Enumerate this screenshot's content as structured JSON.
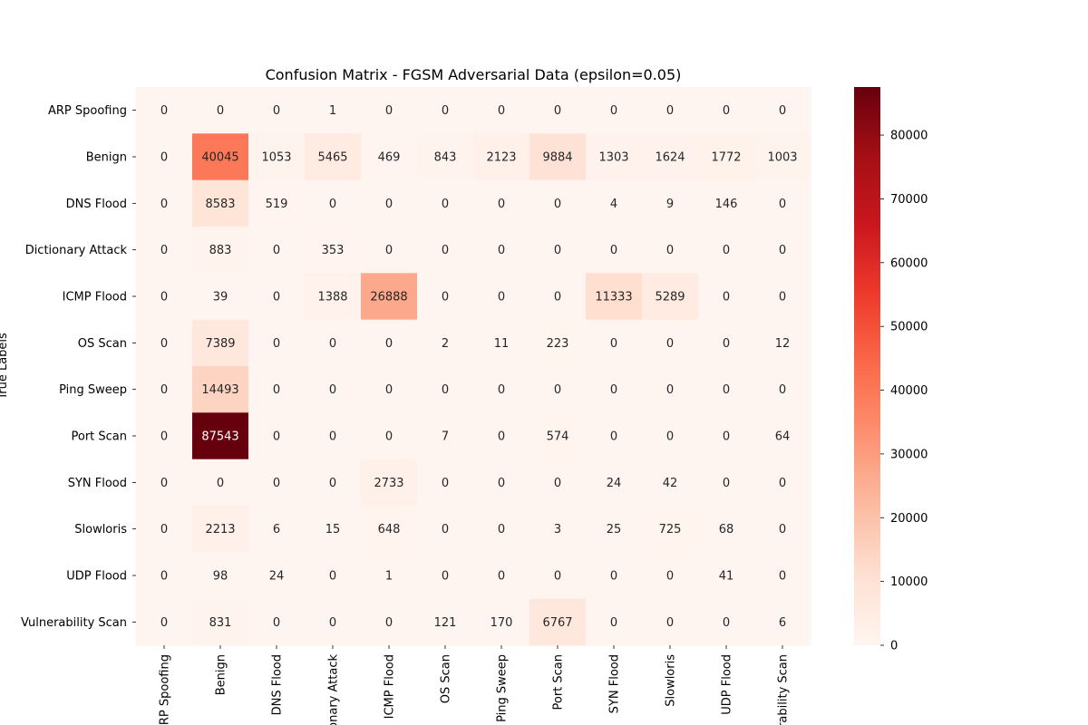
{
  "chart_data": {
    "type": "heatmap",
    "title": "Confusion Matrix - FGSM Adversarial Data (epsilon=0.05)",
    "xlabel": "",
    "ylabel": "True Labels",
    "labels": [
      "ARP Spoofing",
      "Benign",
      "DNS Flood",
      "Dictionary Attack",
      "ICMP Flood",
      "OS Scan",
      "Ping Sweep",
      "Port Scan",
      "SYN Flood",
      "Slowloris",
      "UDP Flood",
      "Vulnerability Scan"
    ],
    "matrix": [
      [
        0,
        0,
        0,
        1,
        0,
        0,
        0,
        0,
        0,
        0,
        0,
        0
      ],
      [
        0,
        40045,
        1053,
        5465,
        469,
        843,
        2123,
        9884,
        1303,
        1624,
        1772,
        1003
      ],
      [
        0,
        8583,
        519,
        0,
        0,
        0,
        0,
        0,
        4,
        9,
        146,
        0
      ],
      [
        0,
        883,
        0,
        353,
        0,
        0,
        0,
        0,
        0,
        0,
        0,
        0
      ],
      [
        0,
        39,
        0,
        1388,
        26888,
        0,
        0,
        0,
        11333,
        5289,
        0,
        0
      ],
      [
        0,
        7389,
        0,
        0,
        0,
        2,
        11,
        223,
        0,
        0,
        0,
        12
      ],
      [
        0,
        14493,
        0,
        0,
        0,
        0,
        0,
        0,
        0,
        0,
        0,
        0
      ],
      [
        0,
        87543,
        0,
        0,
        0,
        7,
        0,
        574,
        0,
        0,
        0,
        64
      ],
      [
        0,
        0,
        0,
        0,
        2733,
        0,
        0,
        0,
        24,
        42,
        0,
        0
      ],
      [
        0,
        2213,
        6,
        15,
        648,
        0,
        0,
        3,
        25,
        725,
        68,
        0
      ],
      [
        0,
        98,
        24,
        0,
        1,
        0,
        0,
        0,
        0,
        0,
        41,
        0
      ],
      [
        0,
        831,
        0,
        0,
        0,
        121,
        170,
        6767,
        0,
        0,
        0,
        6
      ]
    ],
    "colormap": "Reds",
    "colorbar": {
      "min": 0,
      "max": 87543,
      "ticks": [
        0,
        10000,
        20000,
        30000,
        40000,
        50000,
        60000,
        70000,
        80000
      ]
    },
    "grid": false
  }
}
